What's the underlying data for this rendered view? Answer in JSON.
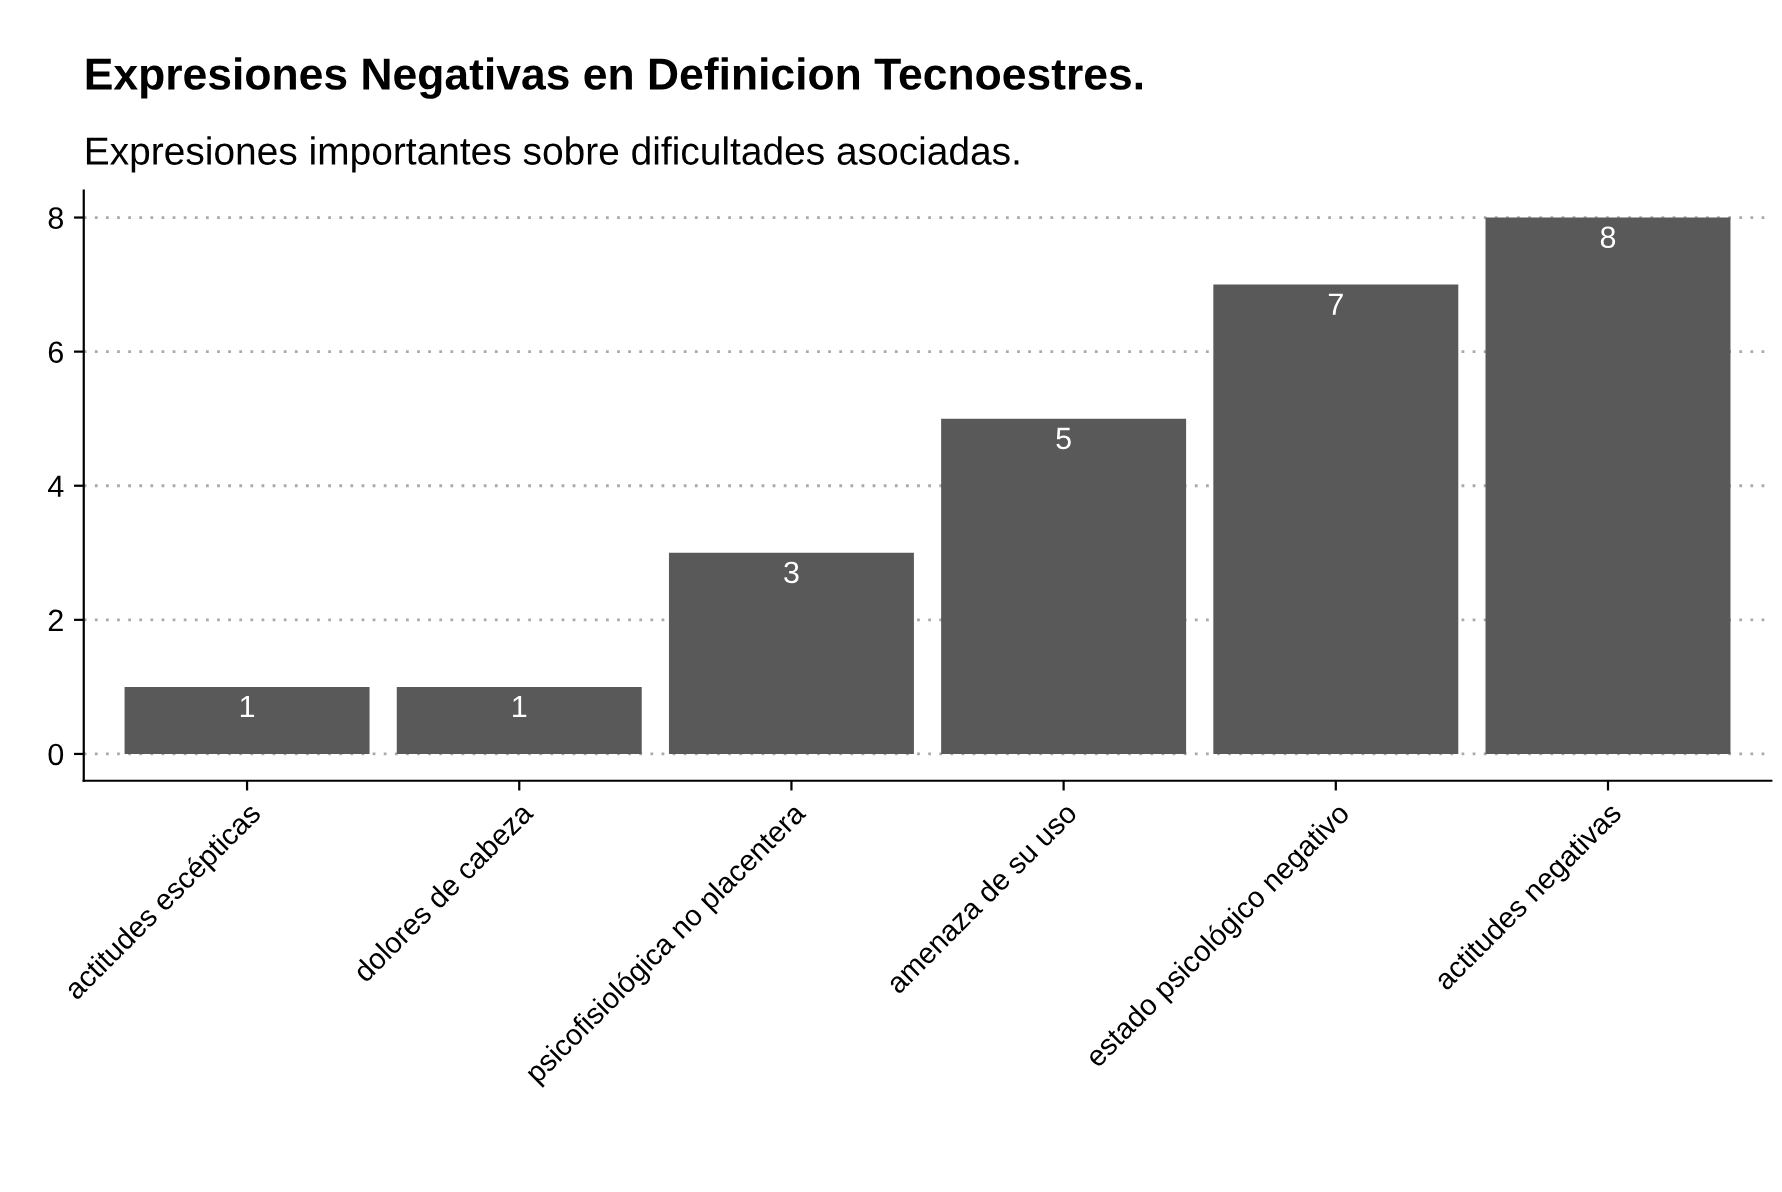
{
  "chart_data": {
    "type": "bar",
    "title": "Expresiones Negativas en Definicion Tecnoestres.",
    "subtitle": "Expresiones importantes sobre dificultades asociadas.",
    "categories": [
      "actitudes escépticas",
      "dolores de cabeza",
      "psicofisiológica no placentera",
      "amenaza de su uso",
      "estado psicológico negativo",
      "actitudes negativas"
    ],
    "values": [
      1,
      1,
      3,
      5,
      7,
      8
    ],
    "color": "#595959",
    "ylim": [
      -0.4,
      8.4
    ],
    "yticks": [
      0,
      2,
      4,
      6,
      8
    ],
    "grid": "y",
    "data_labels": true
  }
}
